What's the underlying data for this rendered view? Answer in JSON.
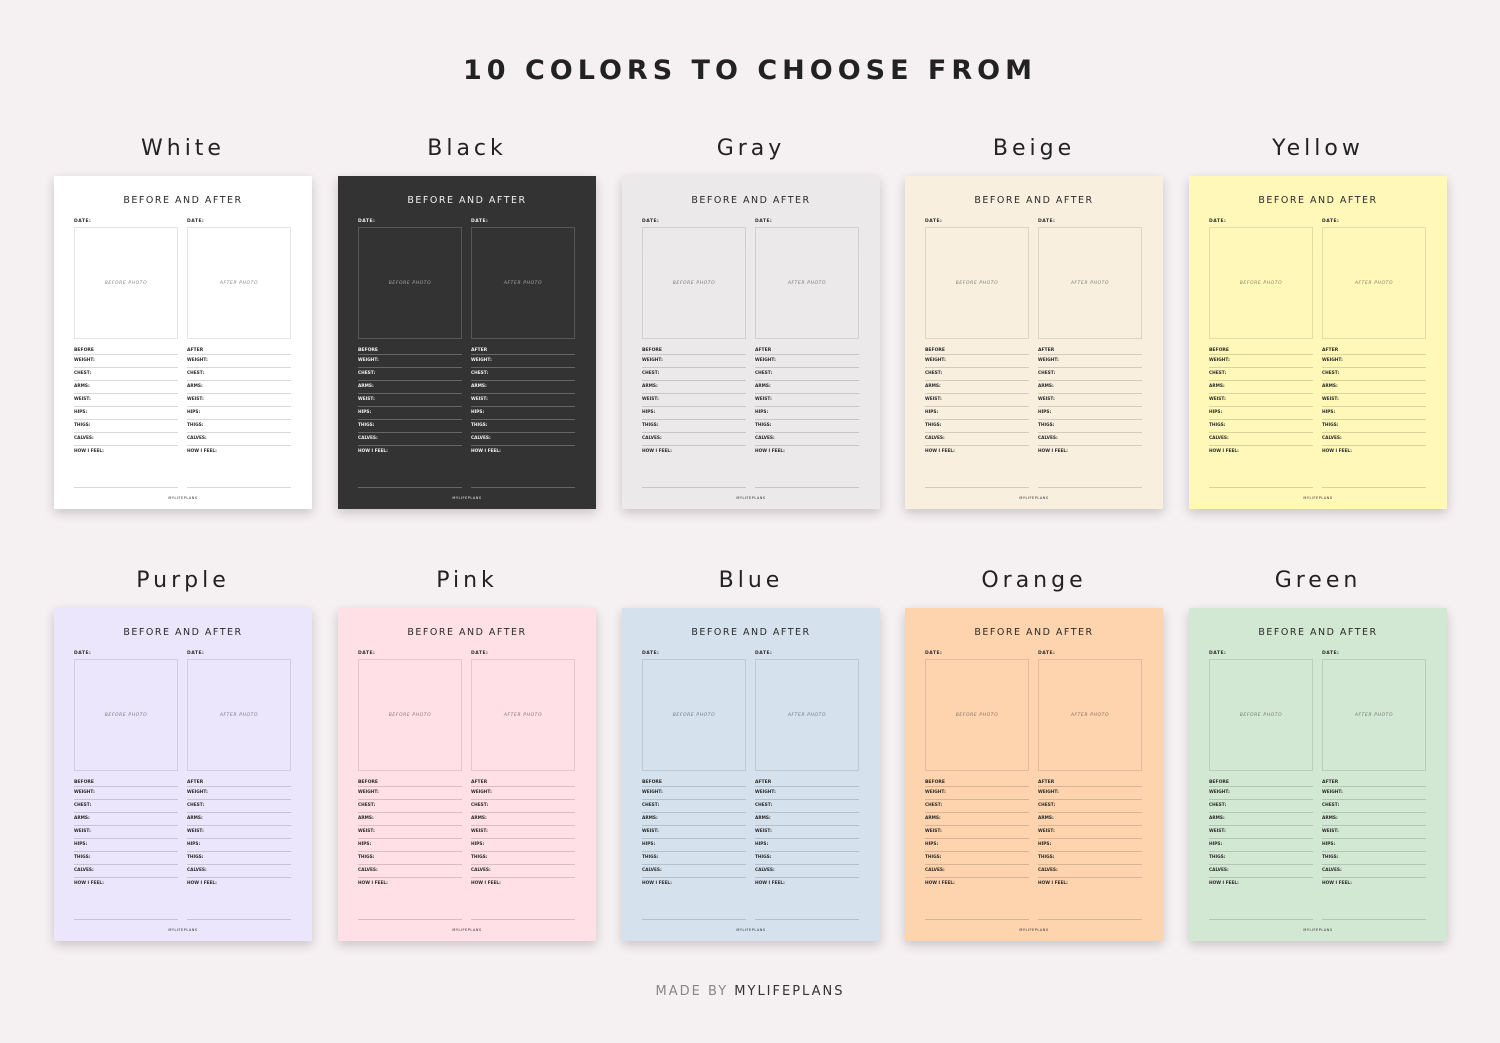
{
  "heading": "10 COLORS TO CHOOSE FROM",
  "footer": {
    "prefix": "MADE BY",
    "brand": "MYLIFEPLANS"
  },
  "sheet": {
    "title": "BEFORE AND AFTER",
    "date_label": "DATE:",
    "before_photo": "BEFORE PHOTO",
    "after_photo": "AFTER PHOTO",
    "before_heading": "BEFORE",
    "after_heading": "AFTER",
    "fields": [
      "WEIGHT:",
      "CHEST:",
      "ARMS:",
      "WEIST:",
      "HIPS:",
      "THIGS:",
      "CALVES:",
      "HOW I FEEL:"
    ],
    "brand": "MYLIFEPLANS"
  },
  "variants": [
    {
      "name": "White",
      "color": "#ffffff",
      "text": "#2a2a2a"
    },
    {
      "name": "Black",
      "color": "#333333",
      "text": "#f0f0f0"
    },
    {
      "name": "Gray",
      "color": "#ebe9e9",
      "text": "#2a2a2a"
    },
    {
      "name": "Beige",
      "color": "#f8efdf",
      "text": "#2a2a2a"
    },
    {
      "name": "Yellow",
      "color": "#fff8b8",
      "text": "#2a2a2a"
    },
    {
      "name": "Purple",
      "color": "#ebe6fb",
      "text": "#2a2a2a"
    },
    {
      "name": "Pink",
      "color": "#fee0e6",
      "text": "#2a2a2a"
    },
    {
      "name": "Blue",
      "color": "#d5e2ee",
      "text": "#2a2a2a"
    },
    {
      "name": "Orange",
      "color": "#fed4ae",
      "text": "#2a2a2a"
    },
    {
      "name": "Green",
      "color": "#d3e8d3",
      "text": "#2a2a2a"
    }
  ]
}
